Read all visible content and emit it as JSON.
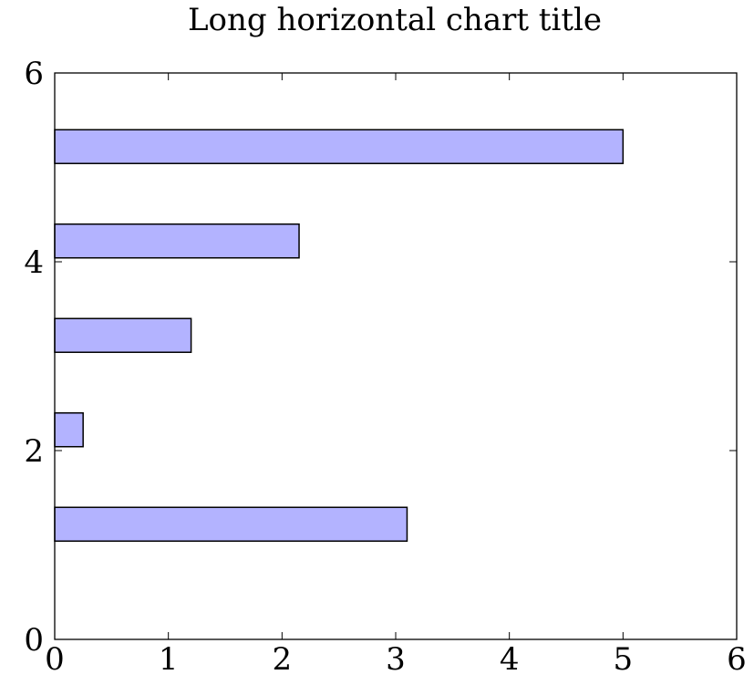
{
  "chart_data": {
    "type": "bar",
    "orientation": "horizontal",
    "title": "Long horizontal chart title",
    "xlabel": "",
    "ylabel": "",
    "xlim": [
      0,
      6
    ],
    "ylim": [
      0,
      6
    ],
    "x_ticks": [
      0,
      1,
      2,
      3,
      4,
      5,
      6
    ],
    "y_ticks": [
      0,
      2,
      4,
      6
    ],
    "bars": [
      {
        "y": 1,
        "value": 3.1
      },
      {
        "y": 2,
        "value": 0.25
      },
      {
        "y": 3,
        "value": 1.2
      },
      {
        "y": 4,
        "value": 2.15
      },
      {
        "y": 5,
        "value": 5.0
      }
    ],
    "bar_fill": "#b3b3ff",
    "bar_stroke": "#000000",
    "grid": false,
    "legend": "none"
  }
}
